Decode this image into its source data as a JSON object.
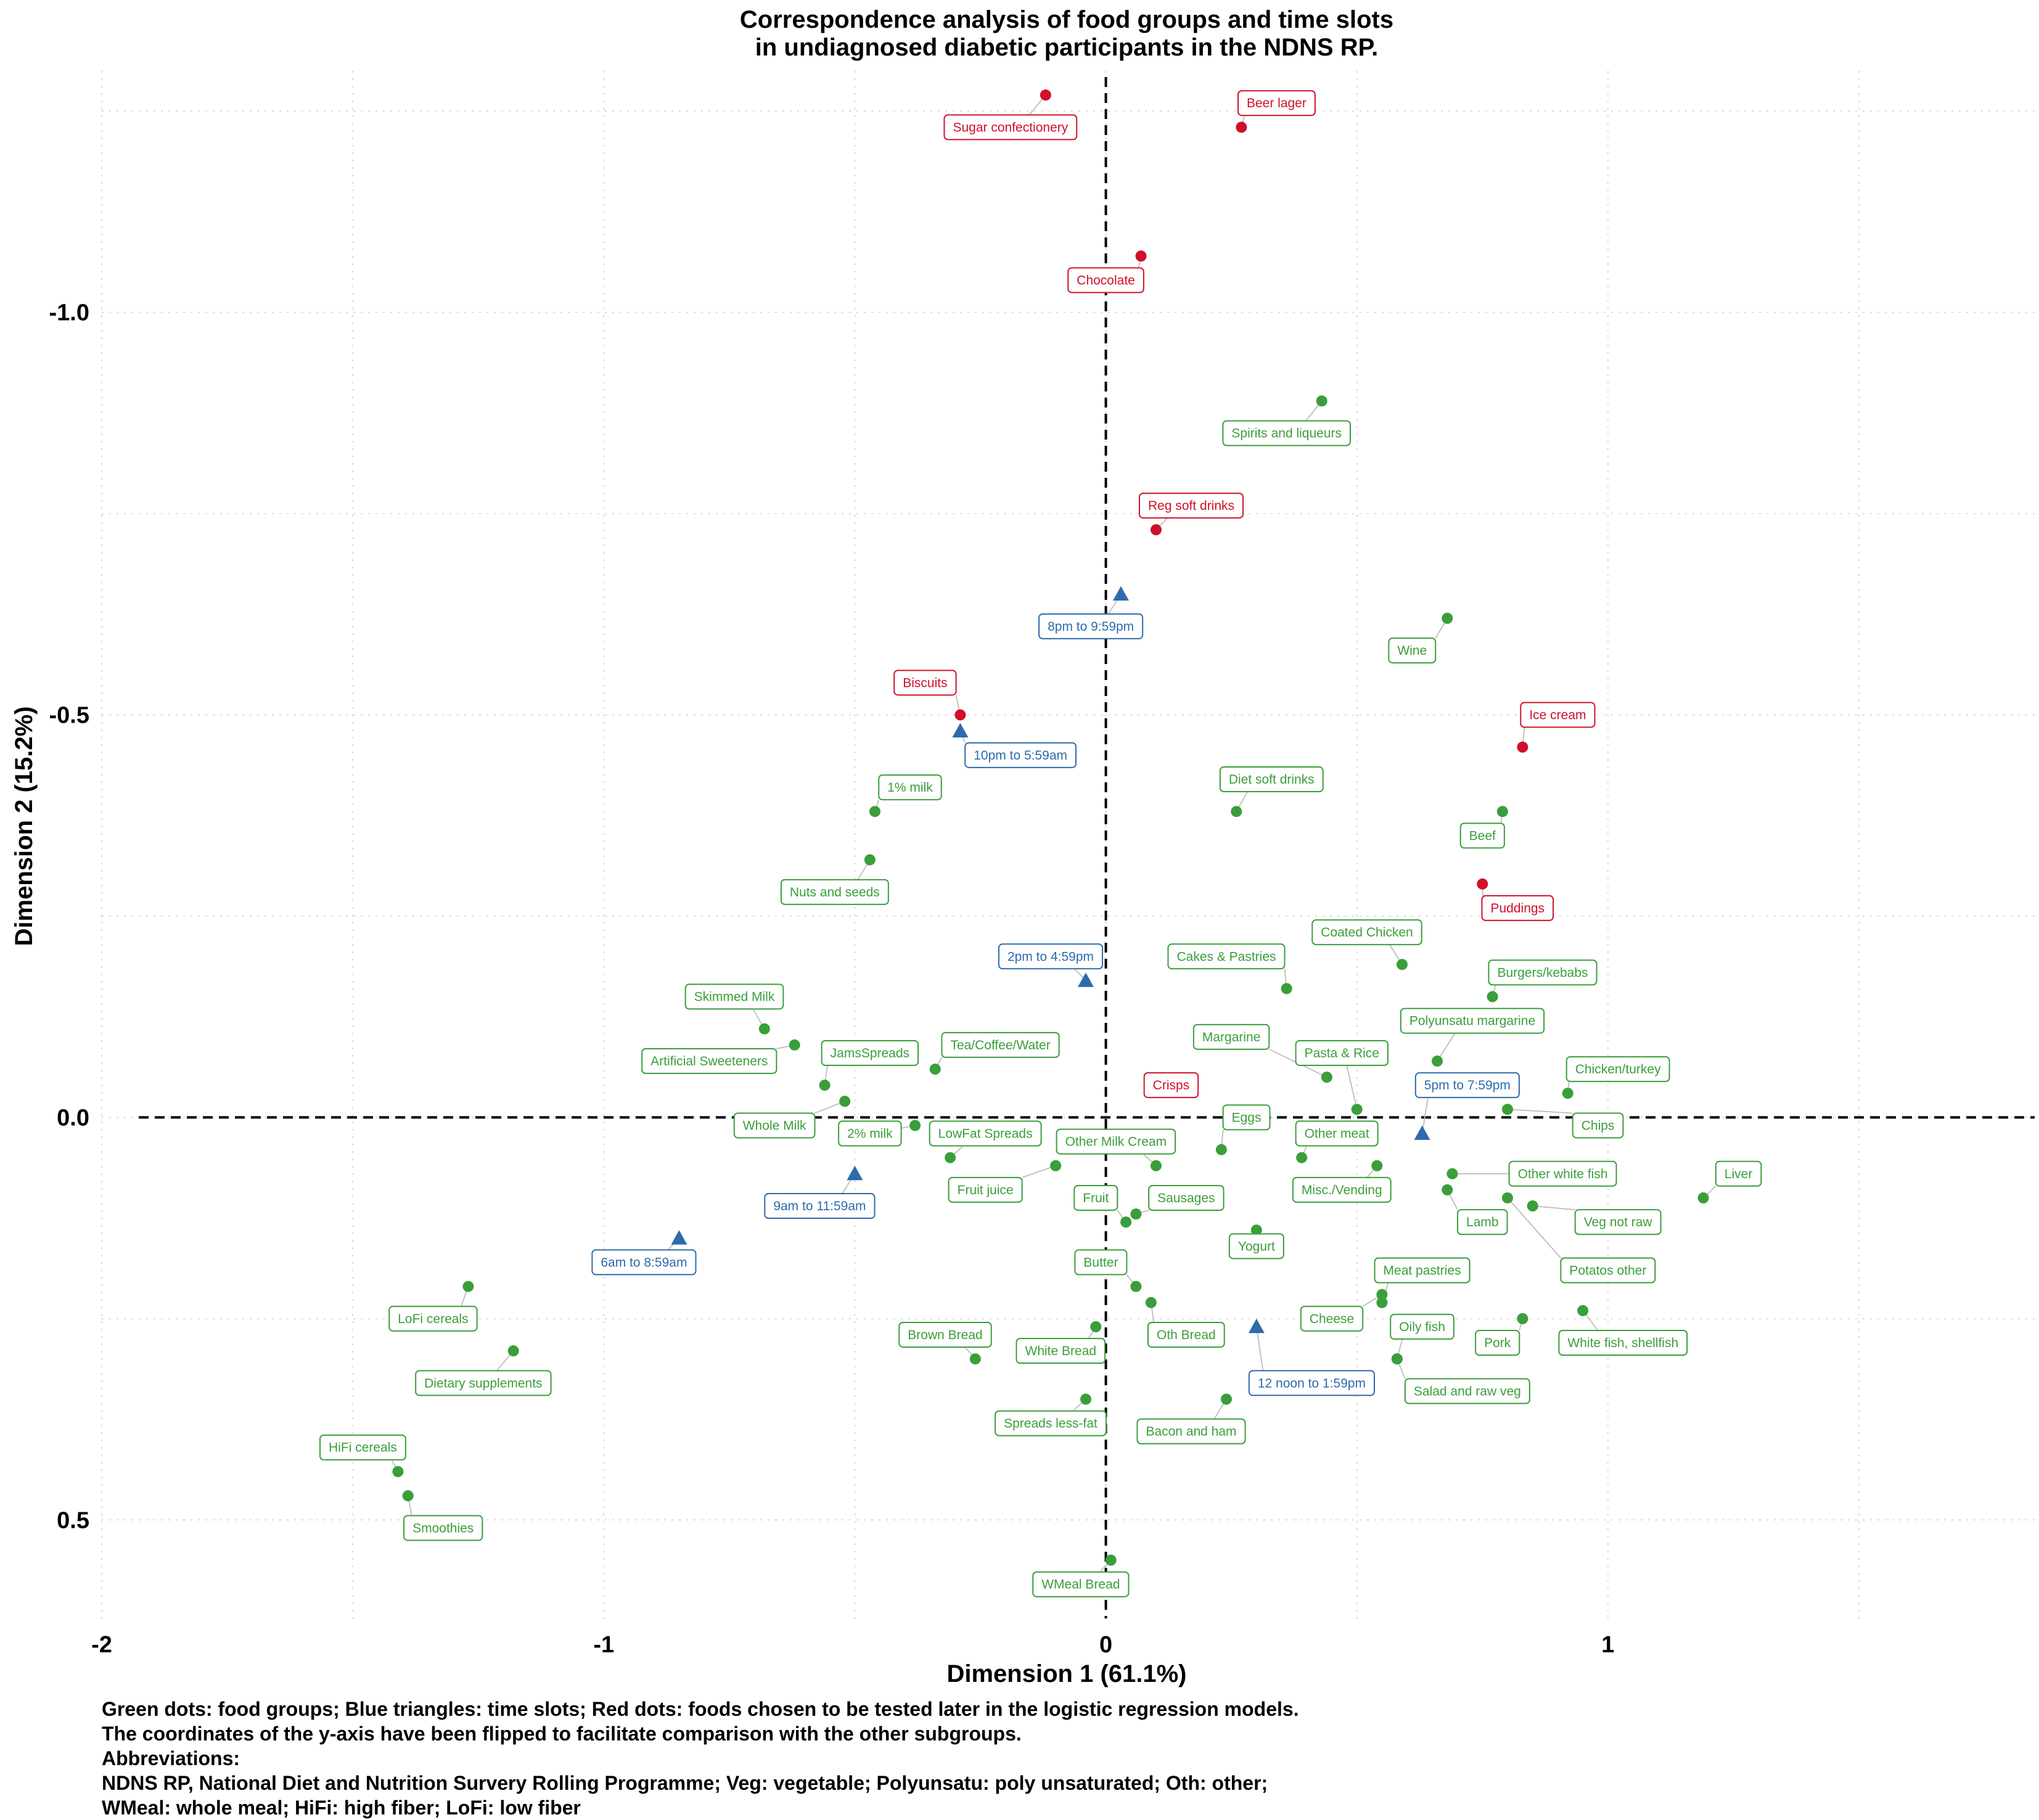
{
  "chart_data": {
    "type": "scatter",
    "title": [
      "Correspondence analysis of food groups and time slots",
      "in undiagnosed diabetic participants in the NDNS RP."
    ],
    "xlabel": "Dimension 1 (61.1%)",
    "ylabel": "Dimension 2 (15.2%)",
    "xlim": [
      -2.0,
      1.85
    ],
    "ylim": [
      -1.3,
      0.63
    ],
    "y_reversed": true,
    "grid": true,
    "x_ticks": [
      {
        "value": -2,
        "label": "-2"
      },
      {
        "value": -1,
        "label": "-1"
      },
      {
        "value": 0,
        "label": "0"
      },
      {
        "value": 1,
        "label": "1"
      }
    ],
    "y_ticks": [
      {
        "value": -1.0,
        "label": "-1.0"
      },
      {
        "value": -0.5,
        "label": "-0.5"
      },
      {
        "value": 0.0,
        "label": "0.0"
      },
      {
        "value": 0.5,
        "label": "0.5"
      }
    ],
    "colors": {
      "food": "#3a9e3a",
      "time": "#2e6bab",
      "tested": "#d0102a"
    },
    "series": [
      {
        "name": "Green dots: food groups",
        "marker": "circle",
        "color": "#3a9e3a",
        "points": [
          {
            "label": "Spirits and liqueurs",
            "x": 0.43,
            "y": -0.89,
            "lx": 0.36,
            "ly": -0.85
          },
          {
            "label": "Wine",
            "x": 0.68,
            "y": -0.62,
            "lx": 0.61,
            "ly": -0.58
          },
          {
            "label": "Diet soft drinks",
            "x": 0.26,
            "y": -0.38,
            "lx": 0.33,
            "ly": -0.42
          },
          {
            "label": "Beef",
            "x": 0.79,
            "y": -0.38,
            "lx": 0.75,
            "ly": -0.35
          },
          {
            "label": "1% milk",
            "x": -0.46,
            "y": -0.38,
            "lx": -0.39,
            "ly": -0.41
          },
          {
            "label": "Nuts and seeds",
            "x": -0.47,
            "y": -0.32,
            "lx": -0.54,
            "ly": -0.28
          },
          {
            "label": "Coated Chicken",
            "x": 0.59,
            "y": -0.19,
            "lx": 0.52,
            "ly": -0.23
          },
          {
            "label": "Cakes & Pastries",
            "x": 0.36,
            "y": -0.16,
            "lx": 0.24,
            "ly": -0.2
          },
          {
            "label": "Burgers/kebabs",
            "x": 0.77,
            "y": -0.15,
            "lx": 0.87,
            "ly": -0.18
          },
          {
            "label": "Skimmed Milk",
            "x": -0.68,
            "y": -0.11,
            "lx": -0.74,
            "ly": -0.15
          },
          {
            "label": "Artificial Sweeteners",
            "x": -0.62,
            "y": -0.09,
            "lx": -0.79,
            "ly": -0.07
          },
          {
            "label": "Margarine",
            "x": 0.44,
            "y": -0.05,
            "lx": 0.25,
            "ly": -0.1
          },
          {
            "label": "Pasta & Rice",
            "x": 0.5,
            "y": -0.01,
            "lx": 0.47,
            "ly": -0.08
          },
          {
            "label": "Polyunsatu margarine",
            "x": 0.66,
            "y": -0.07,
            "lx": 0.73,
            "ly": -0.12
          },
          {
            "label": "Tea/Coffee/Water",
            "x": -0.34,
            "y": -0.06,
            "lx": -0.21,
            "ly": -0.09
          },
          {
            "label": "JamsSpreads",
            "x": -0.56,
            "y": -0.04,
            "lx": -0.47,
            "ly": -0.08
          },
          {
            "label": "Chicken/turkey",
            "x": 0.92,
            "y": -0.03,
            "lx": 1.02,
            "ly": -0.06
          },
          {
            "label": "Whole Milk",
            "x": -0.52,
            "y": -0.02,
            "lx": -0.66,
            "ly": 0.01
          },
          {
            "label": "2% milk",
            "x": -0.38,
            "y": 0.01,
            "lx": -0.47,
            "ly": 0.02
          },
          {
            "label": "Chips",
            "x": 0.8,
            "y": -0.01,
            "lx": 0.98,
            "ly": 0.01
          },
          {
            "label": "Eggs",
            "x": 0.23,
            "y": 0.04,
            "lx": 0.28,
            "ly": 0.0
          },
          {
            "label": "Other meat",
            "x": 0.39,
            "y": 0.05,
            "lx": 0.46,
            "ly": 0.02
          },
          {
            "label": "LowFat Spreads",
            "x": -0.31,
            "y": 0.05,
            "lx": -0.24,
            "ly": 0.02
          },
          {
            "label": "Other Milk Cream",
            "x": 0.1,
            "y": 0.06,
            "lx": 0.02,
            "ly": 0.03
          },
          {
            "label": "Fruit juice",
            "x": -0.1,
            "y": 0.06,
            "lx": -0.24,
            "ly": 0.09
          },
          {
            "label": "Misc./Vending",
            "x": 0.54,
            "y": 0.06,
            "lx": 0.47,
            "ly": 0.09
          },
          {
            "label": "Other white fish",
            "x": 0.69,
            "y": 0.07,
            "lx": 0.91,
            "ly": 0.07
          },
          {
            "label": "Lamb",
            "x": 0.68,
            "y": 0.09,
            "lx": 0.75,
            "ly": 0.13
          },
          {
            "label": "Liver",
            "x": 1.19,
            "y": 0.1,
            "lx": 1.26,
            "ly": 0.07
          },
          {
            "label": "Fruit",
            "x": 0.04,
            "y": 0.13,
            "lx": -0.02,
            "ly": 0.1
          },
          {
            "label": "Sausages",
            "x": 0.06,
            "y": 0.12,
            "lx": 0.16,
            "ly": 0.1
          },
          {
            "label": "Yogurt",
            "x": 0.3,
            "y": 0.14,
            "lx": 0.3,
            "ly": 0.16
          },
          {
            "label": "Veg not raw",
            "x": 0.85,
            "y": 0.11,
            "lx": 1.02,
            "ly": 0.13
          },
          {
            "label": "Potatos other",
            "x": 0.8,
            "y": 0.1,
            "lx": 1.0,
            "ly": 0.19
          },
          {
            "label": "Butter",
            "x": 0.06,
            "y": 0.21,
            "lx": -0.01,
            "ly": 0.18
          },
          {
            "label": "Meat pastries",
            "x": 0.55,
            "y": 0.23,
            "lx": 0.63,
            "ly": 0.19
          },
          {
            "label": "Cheese",
            "x": 0.55,
            "y": 0.22,
            "lx": 0.45,
            "ly": 0.25
          },
          {
            "label": "Oth Bread",
            "x": 0.09,
            "y": 0.23,
            "lx": 0.16,
            "ly": 0.27
          },
          {
            "label": "Oily fish",
            "x": 0.58,
            "y": 0.3,
            "lx": 0.63,
            "ly": 0.26
          },
          {
            "label": "Pork",
            "x": 0.83,
            "y": 0.25,
            "lx": 0.78,
            "ly": 0.28
          },
          {
            "label": "White fish, shellfish",
            "x": 0.95,
            "y": 0.24,
            "lx": 1.03,
            "ly": 0.28
          },
          {
            "label": "LoFi cereals",
            "x": -1.27,
            "y": 0.21,
            "lx": -1.34,
            "ly": 0.25
          },
          {
            "label": "Brown Bread",
            "x": -0.26,
            "y": 0.3,
            "lx": -0.32,
            "ly": 0.27
          },
          {
            "label": "White Bread",
            "x": -0.02,
            "y": 0.26,
            "lx": -0.09,
            "ly": 0.29
          },
          {
            "label": "Dietary supplements",
            "x": -1.18,
            "y": 0.29,
            "lx": -1.24,
            "ly": 0.33
          },
          {
            "label": "Salad and raw veg",
            "x": 0.58,
            "y": 0.3,
            "lx": 0.72,
            "ly": 0.34
          },
          {
            "label": "Spreads less-fat",
            "x": -0.04,
            "y": 0.35,
            "lx": -0.11,
            "ly": 0.38
          },
          {
            "label": "Bacon and ham",
            "x": 0.24,
            "y": 0.35,
            "lx": 0.17,
            "ly": 0.39
          },
          {
            "label": "HiFi cereals",
            "x": -1.41,
            "y": 0.44,
            "lx": -1.48,
            "ly": 0.41
          },
          {
            "label": "Smoothies",
            "x": -1.39,
            "y": 0.47,
            "lx": -1.32,
            "ly": 0.51
          },
          {
            "label": "WMeal Bread",
            "x": 0.01,
            "y": 0.55,
            "lx": -0.05,
            "ly": 0.58
          }
        ]
      },
      {
        "name": "Blue triangles: time slots",
        "marker": "triangle",
        "color": "#2e6bab",
        "points": [
          {
            "label": "8pm to 9:59pm",
            "x": 0.03,
            "y": -0.65,
            "lx": -0.03,
            "ly": -0.61
          },
          {
            "label": "10pm to 5:59am",
            "x": -0.29,
            "y": -0.48,
            "lx": -0.17,
            "ly": -0.45
          },
          {
            "label": "2pm to 4:59pm",
            "x": -0.04,
            "y": -0.17,
            "lx": -0.11,
            "ly": -0.2
          },
          {
            "label": "5pm to 7:59pm",
            "x": 0.63,
            "y": 0.02,
            "lx": 0.72,
            "ly": -0.04
          },
          {
            "label": "9am to 11:59am",
            "x": -0.5,
            "y": 0.07,
            "lx": -0.57,
            "ly": 0.11
          },
          {
            "label": "6am to 8:59am",
            "x": -0.85,
            "y": 0.15,
            "lx": -0.92,
            "ly": 0.18
          },
          {
            "label": "12 noon to 1:59pm",
            "x": 0.3,
            "y": 0.26,
            "lx": 0.41,
            "ly": 0.33
          }
        ]
      },
      {
        "name": "Red dots: foods chosen to be tested later in the logistic regression models.",
        "marker": "circle",
        "color": "#d0102a",
        "points": [
          {
            "label": "Sugar confectionery",
            "x": -0.12,
            "y": -1.27,
            "lx": -0.19,
            "ly": -1.23
          },
          {
            "label": "Beer lager",
            "x": 0.27,
            "y": -1.23,
            "lx": 0.34,
            "ly": -1.26
          },
          {
            "label": "Chocolate",
            "x": 0.07,
            "y": -1.07,
            "lx": 0.0,
            "ly": -1.04
          },
          {
            "label": "Reg soft drinks",
            "x": 0.1,
            "y": -0.73,
            "lx": 0.17,
            "ly": -0.76
          },
          {
            "label": "Biscuits",
            "x": -0.29,
            "y": -0.5,
            "lx": -0.36,
            "ly": -0.54
          },
          {
            "label": "Ice cream",
            "x": 0.83,
            "y": -0.46,
            "lx": 0.9,
            "ly": -0.5
          },
          {
            "label": "Puddings",
            "x": 0.75,
            "y": -0.29,
            "lx": 0.82,
            "ly": -0.26
          },
          {
            "label": "Crisps",
            "x": 0.14,
            "y": -0.04,
            "lx": 0.13,
            "ly": -0.04
          }
        ]
      }
    ]
  },
  "caption": {
    "lines": [
      "Green dots: food groups; Blue triangles: time slots; Red dots: foods chosen to be tested later in the logistic regression models.",
      "The coordinates of the y-axis have been flipped to facilitate comparison with the other subgroups.",
      "Abbreviations:",
      "NDNS RP, National Diet and Nutrition Survery Rolling Programme; Veg: vegetable; Polyunsatu: poly unsaturated; Oth: other;",
      "WMeal: whole meal; HiFi: high fiber; LoFi: low fiber"
    ]
  }
}
